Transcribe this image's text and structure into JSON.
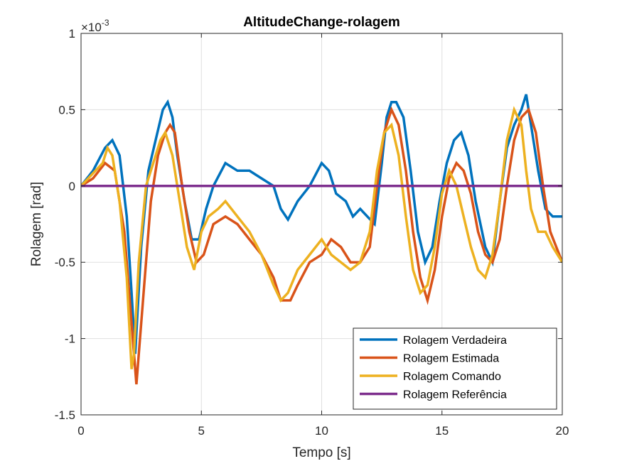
{
  "chart_data": {
    "type": "line",
    "title": "AltitudeChange-rolagem",
    "xlabel": "Tempo [s]",
    "ylabel": "Rolagem [rad]",
    "xlim": [
      0,
      20
    ],
    "ylim": [
      -1.5,
      1
    ],
    "y_multiplier_base": "×10",
    "y_multiplier_exp": "-3",
    "xticks": [
      0,
      5,
      10,
      15,
      20
    ],
    "xtick_labels": [
      "0",
      "5",
      "10",
      "15",
      "20"
    ],
    "yticks": [
      -1.5,
      -1,
      -0.5,
      0,
      0.5,
      1
    ],
    "ytick_labels": [
      "-1.5",
      "-1",
      "-0.5",
      "0",
      "0.5",
      "1"
    ],
    "grid": true,
    "legend_position": "bottom-right",
    "series": [
      {
        "name": "Rolagem Verdadeira",
        "color": "#0072BD",
        "x": [
          0,
          0.5,
          1.0,
          1.3,
          1.6,
          1.9,
          2.1,
          2.25,
          2.5,
          2.8,
          3.1,
          3.4,
          3.6,
          3.8,
          4.0,
          4.3,
          4.6,
          4.9,
          5.2,
          5.5,
          6.0,
          6.5,
          7.0,
          7.5,
          8.0,
          8.3,
          8.6,
          9.0,
          9.5,
          10.0,
          10.3,
          10.6,
          11.0,
          11.3,
          11.6,
          11.9,
          12.2,
          12.5,
          12.7,
          12.9,
          13.1,
          13.4,
          13.7,
          14.0,
          14.3,
          14.6,
          14.9,
          15.2,
          15.5,
          15.8,
          16.1,
          16.4,
          16.8,
          17.1,
          17.4,
          17.7,
          18.0,
          18.3,
          18.5,
          18.7,
          19.0,
          19.3,
          19.6,
          20.0
        ],
        "y": [
          0.0,
          0.1,
          0.25,
          0.3,
          0.2,
          -0.2,
          -0.7,
          -1.1,
          -0.4,
          0.1,
          0.3,
          0.5,
          0.55,
          0.45,
          0.2,
          -0.1,
          -0.35,
          -0.35,
          -0.15,
          0.0,
          0.15,
          0.1,
          0.1,
          0.05,
          0.0,
          -0.15,
          -0.22,
          -0.1,
          0.0,
          0.15,
          0.1,
          -0.05,
          -0.1,
          -0.2,
          -0.15,
          -0.2,
          -0.25,
          0.15,
          0.45,
          0.55,
          0.55,
          0.45,
          0.1,
          -0.3,
          -0.5,
          -0.4,
          -0.1,
          0.15,
          0.3,
          0.35,
          0.2,
          -0.1,
          -0.4,
          -0.5,
          -0.1,
          0.25,
          0.4,
          0.5,
          0.6,
          0.4,
          0.1,
          -0.15,
          -0.2,
          -0.2
        ]
      },
      {
        "name": "Rolagem Estimada",
        "color": "#D95319",
        "x": [
          0,
          0.5,
          1.0,
          1.4,
          1.8,
          2.1,
          2.3,
          2.6,
          2.9,
          3.2,
          3.5,
          3.7,
          3.9,
          4.2,
          4.5,
          4.8,
          5.1,
          5.5,
          6.0,
          6.5,
          7.0,
          7.5,
          8.0,
          8.3,
          8.7,
          9.0,
          9.5,
          10.0,
          10.4,
          10.8,
          11.2,
          11.6,
          12.0,
          12.3,
          12.6,
          12.9,
          13.2,
          13.5,
          13.8,
          14.1,
          14.4,
          14.7,
          15.0,
          15.3,
          15.6,
          15.9,
          16.2,
          16.5,
          16.8,
          17.1,
          17.4,
          17.7,
          18.0,
          18.3,
          18.6,
          18.9,
          19.2,
          19.5,
          20.0
        ],
        "y": [
          0.0,
          0.05,
          0.15,
          0.1,
          -0.3,
          -0.9,
          -1.3,
          -0.7,
          -0.1,
          0.2,
          0.35,
          0.4,
          0.35,
          0.0,
          -0.3,
          -0.5,
          -0.45,
          -0.25,
          -0.2,
          -0.25,
          -0.35,
          -0.45,
          -0.6,
          -0.75,
          -0.75,
          -0.65,
          -0.5,
          -0.45,
          -0.35,
          -0.4,
          -0.5,
          -0.5,
          -0.4,
          0.0,
          0.35,
          0.5,
          0.4,
          0.1,
          -0.3,
          -0.6,
          -0.75,
          -0.55,
          -0.2,
          0.05,
          0.15,
          0.1,
          -0.05,
          -0.3,
          -0.45,
          -0.5,
          -0.35,
          0.0,
          0.3,
          0.45,
          0.5,
          0.35,
          0.0,
          -0.3,
          -0.5
        ]
      },
      {
        "name": "Rolagem Comando",
        "color": "#EDB120",
        "x": [
          0,
          0.3,
          0.6,
          0.9,
          1.1,
          1.3,
          1.6,
          1.9,
          2.1,
          2.2,
          2.4,
          2.7,
          3.0,
          3.3,
          3.5,
          3.8,
          4.1,
          4.4,
          4.7,
          5.0,
          5.3,
          5.7,
          6.0,
          6.5,
          7.0,
          7.5,
          8.0,
          8.3,
          8.6,
          9.0,
          9.5,
          10.0,
          10.4,
          10.8,
          11.2,
          11.6,
          12.0,
          12.3,
          12.6,
          12.9,
          13.2,
          13.5,
          13.8,
          14.1,
          14.4,
          14.7,
          15.0,
          15.3,
          15.6,
          15.9,
          16.2,
          16.5,
          16.8,
          17.1,
          17.4,
          17.7,
          18.0,
          18.3,
          18.5,
          18.7,
          19.0,
          19.3,
          19.6,
          20.0
        ],
        "y": [
          0.0,
          0.05,
          0.1,
          0.15,
          0.25,
          0.2,
          -0.1,
          -0.6,
          -1.2,
          -1.1,
          -0.5,
          0.0,
          0.15,
          0.3,
          0.35,
          0.2,
          -0.1,
          -0.4,
          -0.55,
          -0.3,
          -0.2,
          -0.15,
          -0.1,
          -0.2,
          -0.3,
          -0.45,
          -0.65,
          -0.75,
          -0.7,
          -0.55,
          -0.45,
          -0.35,
          -0.45,
          -0.5,
          -0.55,
          -0.5,
          -0.3,
          0.1,
          0.35,
          0.4,
          0.2,
          -0.2,
          -0.55,
          -0.7,
          -0.65,
          -0.4,
          -0.05,
          0.1,
          0.0,
          -0.2,
          -0.4,
          -0.55,
          -0.6,
          -0.45,
          -0.1,
          0.3,
          0.5,
          0.4,
          0.1,
          -0.15,
          -0.3,
          -0.3,
          -0.4,
          -0.5
        ]
      },
      {
        "name": "Rolagem Referência",
        "color": "#7E2F8E",
        "x": [
          0,
          20
        ],
        "y": [
          0,
          0
        ]
      }
    ]
  }
}
